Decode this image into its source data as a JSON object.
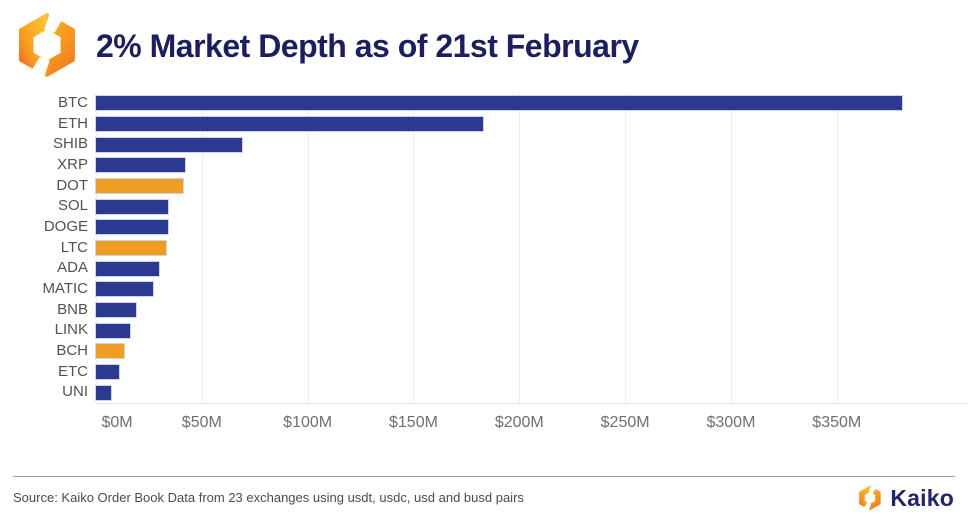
{
  "header": {
    "title": "2% Market Depth as of 21st February"
  },
  "chart_data": {
    "type": "bar",
    "orientation": "horizontal",
    "title": "2% Market Depth as of 21st February",
    "categories": [
      "BTC",
      "ETH",
      "SHIB",
      "XRP",
      "DOT",
      "SOL",
      "DOGE",
      "LTC",
      "ADA",
      "MATIC",
      "BNB",
      "LINK",
      "BCH",
      "ETC",
      "UNI"
    ],
    "values": [
      381,
      183,
      69,
      42,
      41,
      34,
      34,
      33,
      30,
      27,
      19,
      16,
      13,
      11,
      7
    ],
    "values_unit": "$M",
    "x_tick_values": [
      0,
      50,
      100,
      150,
      200,
      250,
      300,
      350
    ],
    "x_tick_labels": [
      "$0M",
      "$50M",
      "$100M",
      "$150M",
      "$200M",
      "$250M",
      "$300M",
      "$350M"
    ],
    "xlim": [
      0,
      412
    ],
    "grid": true,
    "legend": "none",
    "bar_color_default": "#2b3990",
    "bar_color_highlight": "#f09d23",
    "highlighted_categories": [
      "DOT",
      "LTC",
      "BCH"
    ]
  },
  "footer": {
    "source": "Source: Kaiko Order Book Data from 23 exchanges using usdt, usdc, usd and busd pairs",
    "brand": "Kaiko"
  },
  "icons": {
    "header_logo": "kaiko-mark-icon",
    "footer_logo": "kaiko-mark-icon"
  },
  "colors": {
    "title": "#1b1f62",
    "category_label": "#515257",
    "tick_label": "#6f6f73",
    "gridline": "#ececf1",
    "footer_text": "#4c4c4e",
    "brand_navy": "#23246b",
    "logo_orange": "#f68b1f",
    "logo_yellow": "#fdc93b"
  }
}
